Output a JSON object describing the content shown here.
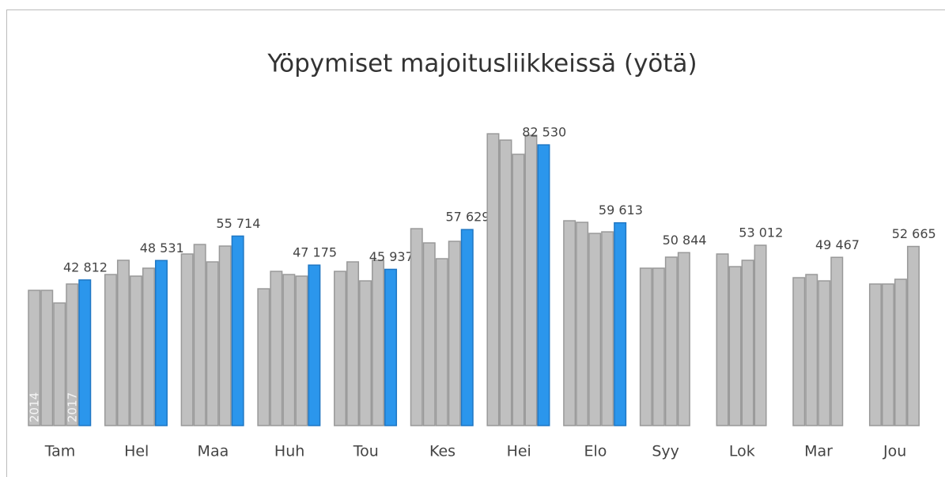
{
  "chart_data": {
    "type": "bar",
    "title": "Yöpymiset majoitusliikkeissä (yötä)",
    "categories": [
      "Tam",
      "Hel",
      "Maa",
      "Huh",
      "Tou",
      "Kes",
      "Hei",
      "Elo",
      "Syy",
      "Lok",
      "Mar",
      "Jou"
    ],
    "ylim": [
      0,
      90000
    ],
    "series": [
      {
        "name": "2014",
        "color": "#c0c0c0",
        "values": [
          39760,
          44410,
          50450,
          40220,
          45340,
          57890,
          85790,
          60220,
          46270,
          50450,
          43480,
          41620
        ]
      },
      {
        "color": "#c0c0c0",
        "values": [
          39760,
          48590,
          53240,
          45340,
          48130,
          53710,
          83930,
          59750,
          46270,
          46730,
          44410,
          41620
        ]
      },
      {
        "color": "#c0c0c0",
        "values": [
          36040,
          43940,
          48130,
          44410,
          42550,
          49060,
          79750,
          56500,
          49520,
          48590,
          42550,
          43010
        ]
      },
      {
        "name": "2017",
        "color": "#c0c0c0",
        "values": [
          41620,
          46270,
          52780,
          43940,
          48590,
          54170,
          85330,
          56960,
          50844,
          53012,
          49467,
          52665
        ],
        "value_labels": [
          null,
          null,
          null,
          null,
          null,
          null,
          null,
          null,
          "50 844",
          "53 012",
          "49 467",
          "52 665"
        ]
      },
      {
        "color": "#2b96ec",
        "values": [
          42812,
          48531,
          55714,
          47175,
          45937,
          57629,
          82530,
          59613,
          null,
          null,
          null,
          null
        ],
        "value_labels": [
          "42 812",
          "48 531",
          "55 714",
          "47 175",
          "45 937",
          "57 629",
          "82 530",
          "59 613",
          null,
          null,
          null,
          null
        ]
      }
    ]
  }
}
